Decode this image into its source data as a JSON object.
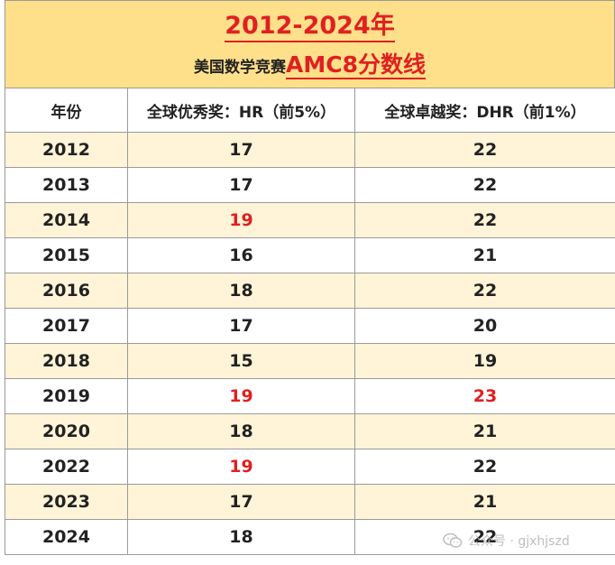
{
  "title": {
    "line1": "2012-2024年",
    "line2_prefix": "美国数学竞赛",
    "line2_accent": "AMC8分数线"
  },
  "table": {
    "headers": [
      "年份",
      "全球优秀奖：HR（前5%）",
      "全球卓越奖：DHR（前1%）"
    ],
    "rows": [
      {
        "year": "2012",
        "hr": "17",
        "dhr": "22",
        "hr_red": false,
        "dhr_red": false
      },
      {
        "year": "2013",
        "hr": "17",
        "dhr": "22",
        "hr_red": false,
        "dhr_red": false
      },
      {
        "year": "2014",
        "hr": "19",
        "dhr": "22",
        "hr_red": true,
        "dhr_red": false
      },
      {
        "year": "2015",
        "hr": "16",
        "dhr": "21",
        "hr_red": false,
        "dhr_red": false
      },
      {
        "year": "2016",
        "hr": "18",
        "dhr": "22",
        "hr_red": false,
        "dhr_red": false
      },
      {
        "year": "2017",
        "hr": "17",
        "dhr": "20",
        "hr_red": false,
        "dhr_red": false
      },
      {
        "year": "2018",
        "hr": "15",
        "dhr": "19",
        "hr_red": false,
        "dhr_red": false
      },
      {
        "year": "2019",
        "hr": "19",
        "dhr": "23",
        "hr_red": true,
        "dhr_red": true
      },
      {
        "year": "2020",
        "hr": "18",
        "dhr": "21",
        "hr_red": false,
        "dhr_red": false
      },
      {
        "year": "2022",
        "hr": "19",
        "dhr": "22",
        "hr_red": true,
        "dhr_red": false
      },
      {
        "year": "2023",
        "hr": "17",
        "dhr": "21",
        "hr_red": false,
        "dhr_red": false
      },
      {
        "year": "2024",
        "hr": "18",
        "dhr": "22",
        "hr_red": false,
        "dhr_red": false
      }
    ]
  },
  "watermark": {
    "icon": "wechat-icon",
    "text": "公众号 · gjxhjszd"
  },
  "colors": {
    "title_bg": "#ffe08a",
    "row_shade": "#fff4d8",
    "accent_red": "#e02020",
    "border": "#9a9a9a"
  }
}
